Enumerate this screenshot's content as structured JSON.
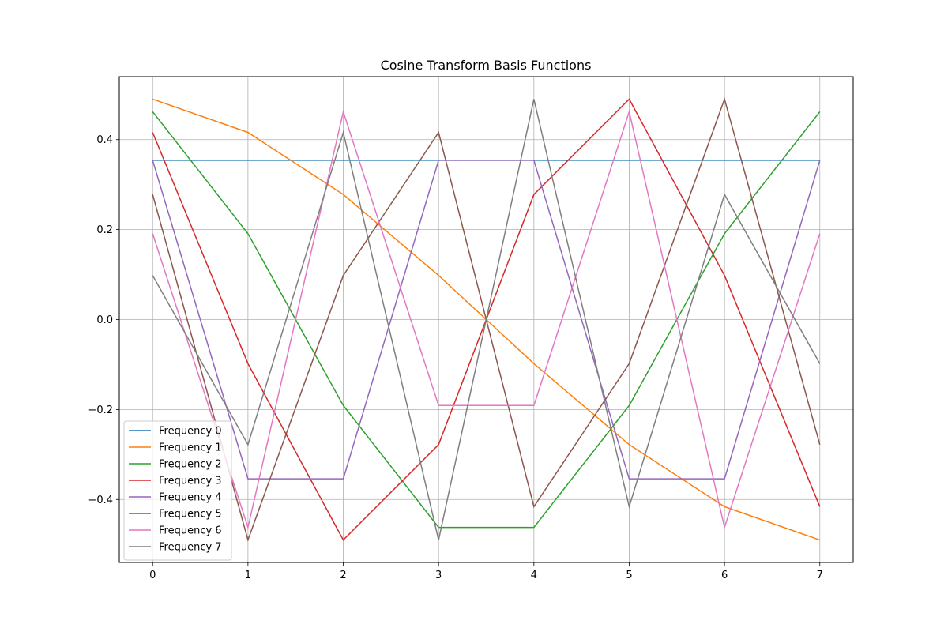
{
  "chart_data": {
    "type": "line",
    "title": "Cosine Transform Basis Functions",
    "xlabel": "",
    "ylabel": "",
    "x": [
      0,
      1,
      2,
      3,
      4,
      5,
      6,
      7
    ],
    "xlim": [
      -0.35,
      7.35
    ],
    "ylim": [
      -0.54,
      0.54
    ],
    "xticks": [
      0,
      1,
      2,
      3,
      4,
      5,
      6,
      7
    ],
    "yticks": [
      -0.4,
      -0.2,
      0.0,
      0.2,
      0.4
    ],
    "ytick_labels": [
      "−0.4",
      "−0.2",
      "0.0",
      "0.2",
      "0.4"
    ],
    "grid": true,
    "legend_position": "lower-left",
    "series": [
      {
        "name": "Frequency 0",
        "color": "#1f77b4",
        "values": [
          0.354,
          0.354,
          0.354,
          0.354,
          0.354,
          0.354,
          0.354,
          0.354
        ]
      },
      {
        "name": "Frequency 1",
        "color": "#ff7f0e",
        "values": [
          0.49,
          0.416,
          0.278,
          0.098,
          -0.098,
          -0.278,
          -0.416,
          -0.49
        ]
      },
      {
        "name": "Frequency 2",
        "color": "#2ca02c",
        "values": [
          0.462,
          0.191,
          -0.191,
          -0.462,
          -0.462,
          -0.191,
          0.191,
          0.462
        ]
      },
      {
        "name": "Frequency 3",
        "color": "#d62728",
        "values": [
          0.416,
          -0.098,
          -0.49,
          -0.278,
          0.278,
          0.49,
          0.098,
          -0.416
        ]
      },
      {
        "name": "Frequency 4",
        "color": "#9467bd",
        "values": [
          0.354,
          -0.354,
          -0.354,
          0.354,
          0.354,
          -0.354,
          -0.354,
          0.354
        ]
      },
      {
        "name": "Frequency 5",
        "color": "#8c564b",
        "values": [
          0.278,
          -0.49,
          0.098,
          0.416,
          -0.416,
          -0.098,
          0.49,
          -0.278
        ]
      },
      {
        "name": "Frequency 6",
        "color": "#e377c2",
        "values": [
          0.191,
          -0.462,
          0.462,
          -0.191,
          -0.191,
          0.462,
          -0.462,
          0.191
        ]
      },
      {
        "name": "Frequency 7",
        "color": "#7f7f7f",
        "values": [
          0.098,
          -0.278,
          0.416,
          -0.49,
          0.49,
          -0.416,
          0.278,
          -0.098
        ]
      }
    ]
  }
}
